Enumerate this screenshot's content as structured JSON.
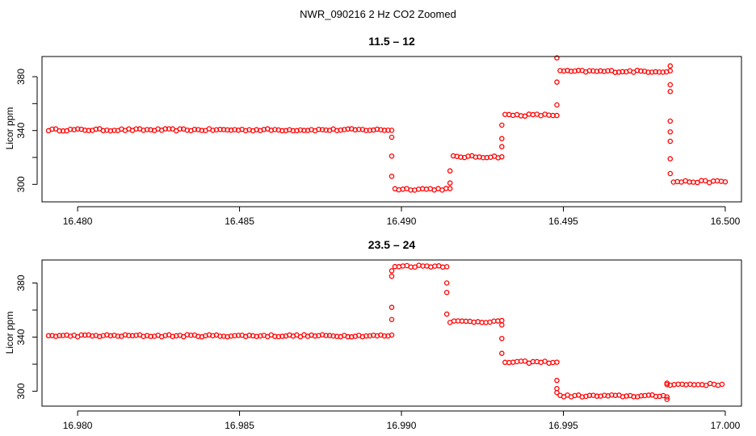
{
  "figure": {
    "title": "NWR_090216  2 Hz CO2 Zoomed",
    "colors": {
      "points": "#ff0000",
      "axes": "#000000",
      "background": "#ffffff"
    }
  },
  "chart_data": [
    {
      "type": "scatter",
      "title": "11.5 – 12",
      "xlabel": "",
      "ylabel": "Licor ppm",
      "xlim": [
        16.4789,
        16.5005
      ],
      "ylim": [
        287,
        395
      ],
      "xticks": [
        16.48,
        16.485,
        16.49,
        16.495,
        16.5
      ],
      "xtick_labels": [
        "16.480",
        "16.485",
        "16.490",
        "16.495",
        "16.500"
      ],
      "yticks": [
        300,
        340,
        380
      ],
      "ytick_labels": [
        "300",
        "340",
        "380"
      ],
      "grid": false,
      "marker": "open-circle",
      "segments": [
        {
          "x_start": 16.4791,
          "x_end": 16.4897,
          "y": 340.5
        },
        {
          "x_start": 16.4898,
          "x_end": 16.4915,
          "y": 296.5
        },
        {
          "x_start": 16.4916,
          "x_end": 16.4931,
          "y": 320.5
        },
        {
          "x_start": 16.4932,
          "x_end": 16.4948,
          "y": 351.5
        },
        {
          "x_start": 16.4949,
          "x_end": 16.4983,
          "y": 384.0
        },
        {
          "x_start": 16.4984,
          "x_end": 16.5,
          "y": 302.0
        }
      ],
      "transitions": [
        {
          "x": 16.4897,
          "y": [
            335,
            321,
            306
          ]
        },
        {
          "x": 16.4915,
          "y": [
            301,
            310
          ]
        },
        {
          "x": 16.4931,
          "y": [
            328,
            334,
            344
          ]
        },
        {
          "x": 16.4948,
          "y": [
            359,
            376,
            394
          ]
        },
        {
          "x": 16.4983,
          "y": [
            388,
            374,
            369,
            347,
            339,
            332,
            319,
            308
          ]
        }
      ]
    },
    {
      "type": "scatter",
      "title": "23.5 – 24",
      "xlabel": "",
      "ylabel": "Licor ppm",
      "xlim": [
        16.9789,
        17.0005
      ],
      "ylim": [
        289,
        397
      ],
      "xticks": [
        16.98,
        16.985,
        16.99,
        16.995,
        17.0
      ],
      "xtick_labels": [
        "16.980",
        "16.985",
        "16.990",
        "16.995",
        "17.000"
      ],
      "yticks": [
        300,
        340,
        380
      ],
      "ytick_labels": [
        "300",
        "340",
        "380"
      ],
      "grid": false,
      "marker": "open-circle",
      "segments": [
        {
          "x_start": 16.9791,
          "x_end": 16.9897,
          "y": 341.0
        },
        {
          "x_start": 16.9898,
          "x_end": 16.9914,
          "y": 392.5
        },
        {
          "x_start": 16.9915,
          "x_end": 16.9931,
          "y": 351.5
        },
        {
          "x_start": 16.9932,
          "x_end": 16.9948,
          "y": 321.5
        },
        {
          "x_start": 16.9949,
          "x_end": 16.9982,
          "y": 296.5
        },
        {
          "x_start": 16.9983,
          "x_end": 16.9999,
          "y": 305.0
        }
      ],
      "transitions": [
        {
          "x": 16.9897,
          "y": [
            353,
            362,
            385,
            389
          ]
        },
        {
          "x": 16.9914,
          "y": [
            380,
            373,
            357
          ]
        },
        {
          "x": 16.9931,
          "y": [
            349,
            339,
            328
          ]
        },
        {
          "x": 16.9948,
          "y": [
            308,
            302,
            299
          ]
        },
        {
          "x": 16.9982,
          "y": [
            294,
            305,
            306
          ]
        }
      ]
    }
  ]
}
